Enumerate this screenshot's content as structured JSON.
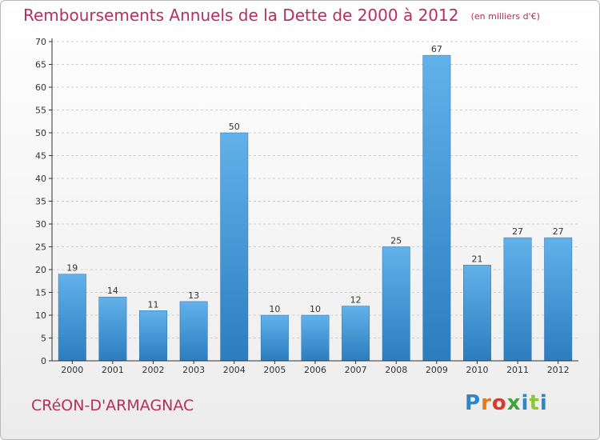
{
  "header": {
    "title": "Remboursements Annuels de la Dette de 2000 à 2012",
    "subtitle": "(en milliers d'€)"
  },
  "footer": {
    "commune": "CRéON-D'ARMAGNAC",
    "logo": "Proxiti"
  },
  "colors": {
    "accent": "#b5305d",
    "bar_light": "#62b1ea",
    "bar_dark": "#2b7dbf",
    "axis": "#333333",
    "grid": "#cfcfcf"
  },
  "chart_data": {
    "type": "bar",
    "title": "Remboursements Annuels de la Dette de 2000 à 2012",
    "subtitle": "(en milliers d'€)",
    "categories": [
      "2000",
      "2001",
      "2002",
      "2003",
      "2004",
      "2005",
      "2006",
      "2007",
      "2008",
      "2009",
      "2010",
      "2011",
      "2012"
    ],
    "values": [
      19,
      14,
      11,
      13,
      50,
      10,
      10,
      12,
      25,
      67,
      21,
      27,
      27
    ],
    "ylim": [
      0,
      70
    ],
    "yticks": [
      0,
      5,
      10,
      15,
      20,
      25,
      30,
      35,
      40,
      45,
      50,
      55,
      60,
      65,
      70
    ],
    "grid": true,
    "data_labels": true
  }
}
